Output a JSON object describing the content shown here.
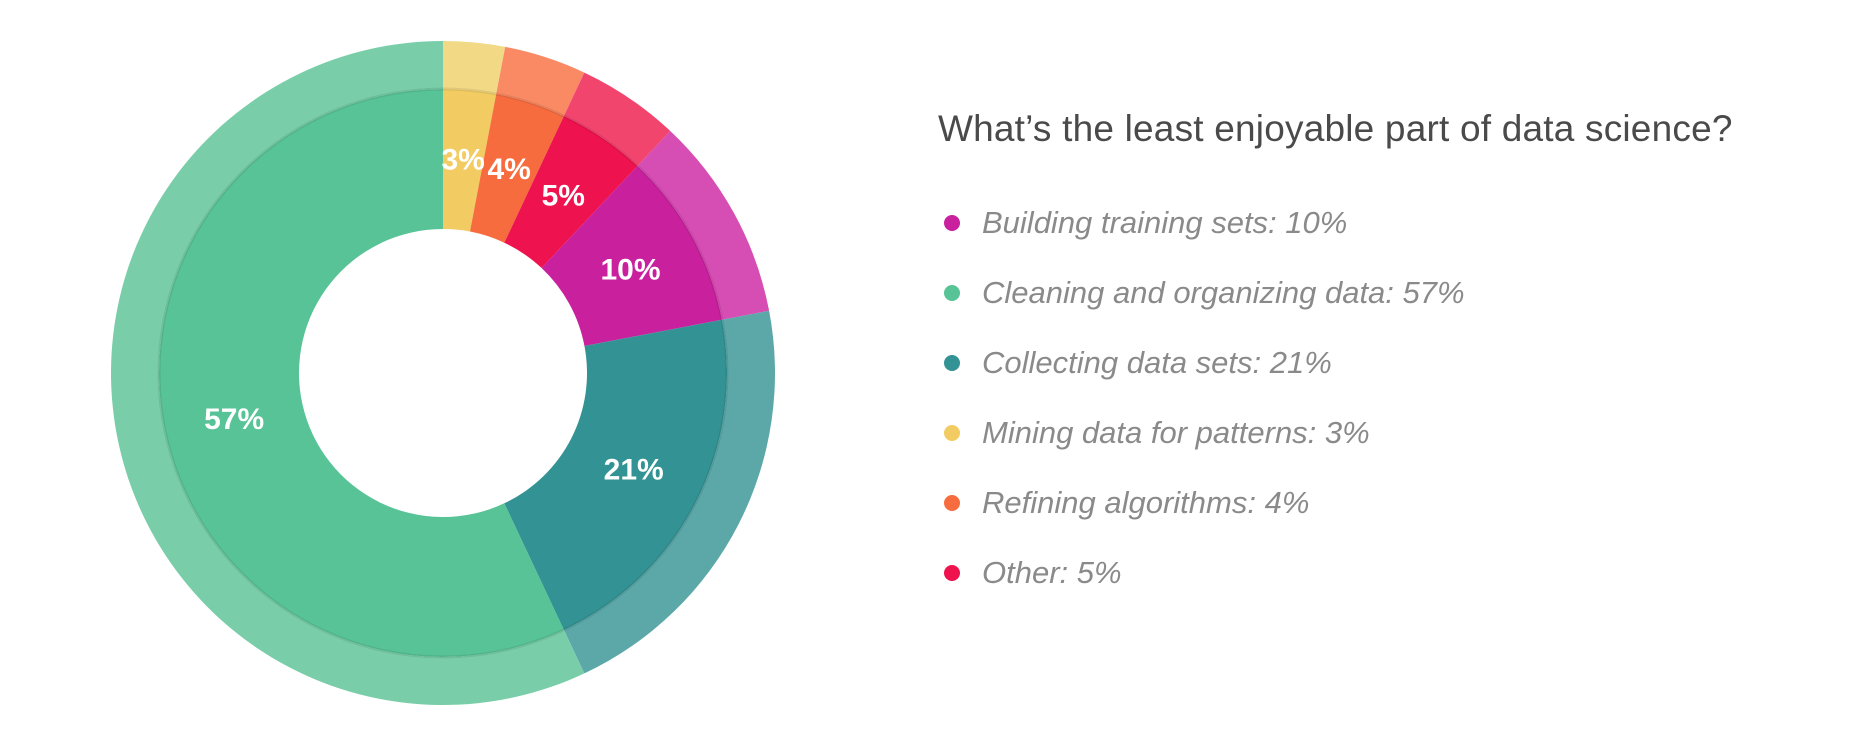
{
  "chart_data": {
    "type": "pie",
    "variant": "donut",
    "title": "What’s the least enjoyable part of data science?",
    "slices": [
      {
        "name": "Mining data for patterns",
        "value": 3,
        "label": "3%",
        "legend": "Mining data for patterns: 3%",
        "color": "#f2cc63",
        "outer_color": "#f2d985"
      },
      {
        "name": "Refining algorithms",
        "value": 4,
        "label": "4%",
        "legend": "Refining algorithms: 4%",
        "color": "#f66c3e",
        "outer_color": "#f98a63"
      },
      {
        "name": "Other",
        "value": 5,
        "label": "5%",
        "legend": "Other: 5%",
        "color": "#ee124e",
        "outer_color": "#f2456e"
      },
      {
        "name": "Building training sets",
        "value": 10,
        "label": "10%",
        "legend": "Building training sets: 10%",
        "color": "#c9219e",
        "outer_color": "#d64db3"
      },
      {
        "name": "Collecting data sets",
        "value": 21,
        "label": "21%",
        "legend": "Collecting data sets: 21%",
        "color": "#339293",
        "outer_color": "#5ca8a9"
      },
      {
        "name": "Cleaning and organizing data",
        "value": 57,
        "label": "57%",
        "legend": "Cleaning and organizing data: 57%",
        "color": "#57c396",
        "outer_color": "#79cea9"
      }
    ],
    "legend_order": [
      "Building training sets",
      "Cleaning and organizing data",
      "Collecting data sets",
      "Mining data for patterns",
      "Refining algorithms",
      "Other"
    ],
    "start_angle": "top (12 o'clock), clockwise",
    "legend_position": "right"
  }
}
